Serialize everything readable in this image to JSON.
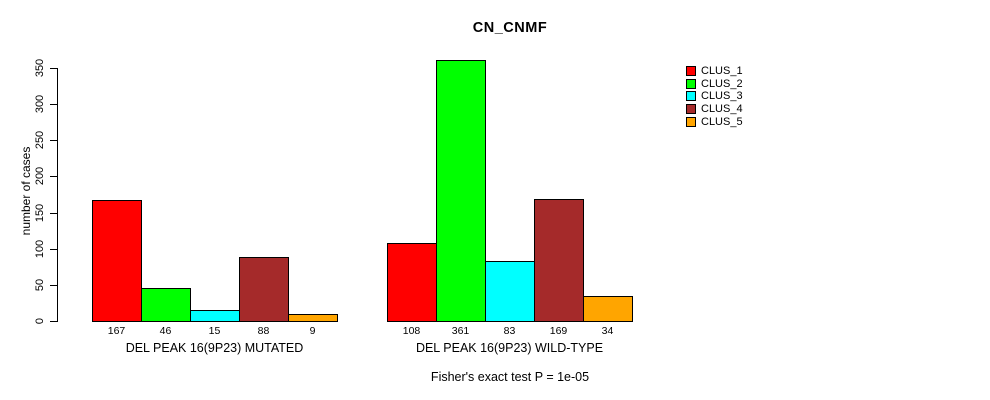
{
  "chart_data": {
    "type": "bar",
    "title": "CN_CNMF",
    "ylabel": "number of cases",
    "xlabel": "",
    "ylim": [
      0,
      350
    ],
    "yticks": [
      0,
      50,
      100,
      150,
      200,
      250,
      300,
      350
    ],
    "grid": false,
    "legend_position": "right",
    "bar_value_labels_shown": true,
    "categories": [
      "DEL PEAK 16(9P23) MUTATED",
      "DEL PEAK 16(9P23) WILD-TYPE"
    ],
    "series": [
      {
        "name": "CLUS_1",
        "color": "#FF0000",
        "values": [
          167,
          108
        ]
      },
      {
        "name": "CLUS_2",
        "color": "#00FF00",
        "values": [
          46,
          361
        ]
      },
      {
        "name": "CLUS_3",
        "color": "#00FFFF",
        "values": [
          15,
          83
        ]
      },
      {
        "name": "CLUS_4",
        "color": "#A52A2A",
        "values": [
          88,
          169
        ]
      },
      {
        "name": "CLUS_5",
        "color": "#FFA500",
        "values": [
          9,
          34
        ]
      }
    ],
    "annotation": "Fisher's exact test P = 1e-05"
  }
}
